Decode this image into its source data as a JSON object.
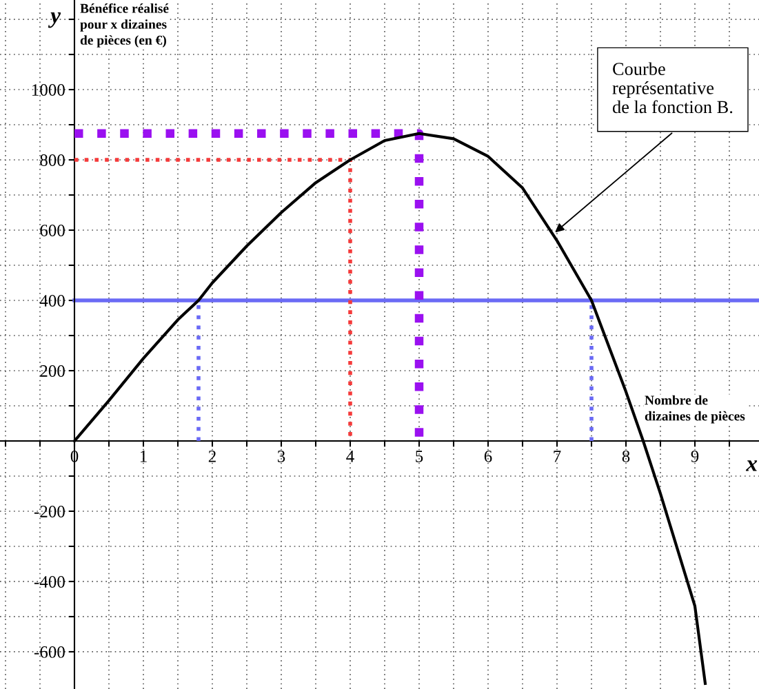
{
  "chart_data": {
    "type": "line",
    "xlabel": "x",
    "ylabel": "y",
    "xlim": [
      -1.08,
      9.93
    ],
    "ylim": [
      -706,
      1255
    ],
    "xticks": [
      0,
      {
        "value": 0.5,
        "label": null
      },
      1,
      {
        "value": 1.5,
        "label": null
      },
      2,
      {
        "value": 2.5,
        "label": null
      },
      3,
      {
        "value": 3.5,
        "label": null
      },
      4,
      {
        "value": 4.5,
        "label": null
      },
      5,
      {
        "value": 5.5,
        "label": null
      },
      6,
      {
        "value": 6.5,
        "label": null
      },
      7,
      {
        "value": 7.5,
        "label": null
      },
      8,
      {
        "value": 8.5,
        "label": null
      },
      9,
      {
        "value": 9.5,
        "label": null
      },
      {
        "value": -0.5,
        "label": null
      },
      {
        "value": -1,
        "label": null
      }
    ],
    "yticks": [
      -600,
      {
        "value": -500,
        "label": null
      },
      -400,
      {
        "value": -300,
        "label": null
      },
      -200,
      {
        "value": -100,
        "label": null
      },
      {
        "value": 0,
        "label": null
      },
      {
        "value": 100,
        "label": null
      },
      200,
      {
        "value": 300,
        "label": null
      },
      400,
      {
        "value": 500,
        "label": null
      },
      600,
      {
        "value": 700,
        "label": null
      },
      800,
      {
        "value": 900,
        "label": null
      },
      1000,
      {
        "value": 1100,
        "label": null
      },
      {
        "value": 1200,
        "label": null
      }
    ],
    "grid": true,
    "series": [
      {
        "color": "#000000",
        "line_style": "solid",
        "x": [
          0,
          0.5,
          1,
          1.5,
          1.8,
          2,
          2.5,
          3,
          3.5,
          4,
          4.5,
          5,
          5.5,
          6,
          6.5,
          7,
          7.5,
          8,
          8.25,
          8.5,
          9,
          9.15
        ],
        "values": [
          0,
          115,
          235,
          345,
          400,
          450,
          555,
          650,
          735,
          800,
          855,
          875,
          860,
          810,
          720,
          570,
          400,
          140,
          0,
          -150,
          -470,
          -690
        ]
      },
      {
        "color": "#6a6af5",
        "line_style": "dotted",
        "x": [
          1.8,
          1.8
        ],
        "values": [
          0,
          400
        ]
      },
      {
        "color": "#6a6af5",
        "line_style": "dotted",
        "x": [
          7.5,
          7.5
        ],
        "values": [
          0,
          400
        ]
      },
      {
        "color": "#f53a3a",
        "line_style": "dotted",
        "x": [
          0,
          4,
          4
        ],
        "values": [
          800,
          800,
          0
        ]
      },
      {
        "color": "#9a10f0",
        "line_style": "dotted",
        "x": [
          0,
          5,
          5
        ],
        "values": [
          875,
          875,
          0
        ]
      }
    ],
    "ref_lines": [
      {
        "axis": "y",
        "value": 400,
        "color": "#6a6af5",
        "line_style": "solid"
      }
    ],
    "annotations": [
      "Bénéfice réalisé\npour x dizaines\nde pièces (en €)",
      "Nombre de\ndizaines de pièces",
      {
        "text": "Courbe\nreprésentative\nde la fonction B.",
        "x": 6.95,
        "y": 590
      }
    ]
  }
}
